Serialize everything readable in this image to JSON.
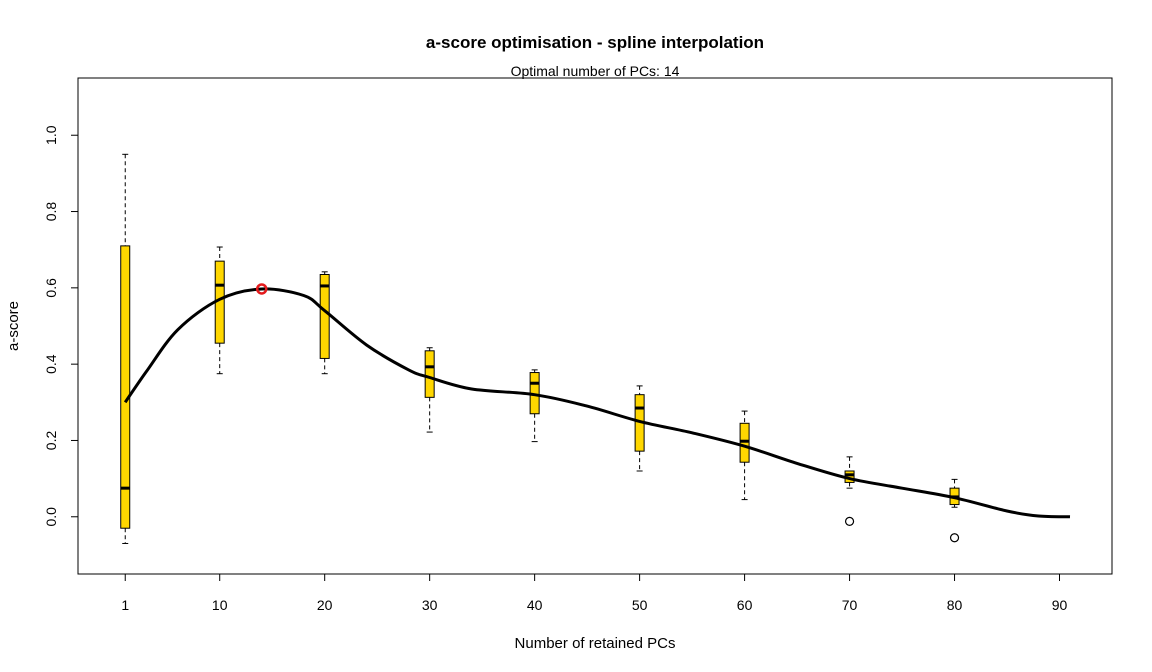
{
  "chart_data": {
    "type": "boxplot",
    "title": "a-score optimisation - spline interpolation",
    "subtitle": "Optimal number of PCs: 14",
    "xlabel": "Number of retained PCs",
    "ylabel": "a-score",
    "xlim": [
      -3.5,
      95
    ],
    "ylim": [
      -0.15,
      1.15
    ],
    "x_ticks": [
      1,
      10,
      20,
      30,
      40,
      50,
      60,
      70,
      80,
      90
    ],
    "y_ticks": [
      0.0,
      0.2,
      0.4,
      0.6,
      0.8,
      1.0
    ],
    "y_tick_labels": [
      "0.0",
      "0.2",
      "0.4",
      "0.6",
      "0.8",
      "1.0"
    ],
    "x_tick_labels": [
      "1",
      "10",
      "20",
      "30",
      "40",
      "50",
      "60",
      "70",
      "80",
      "90"
    ],
    "box_color": "#FFD700",
    "optimum_color": "#e31a1c",
    "boxes": [
      {
        "x": 1,
        "min": -0.07,
        "q1": -0.03,
        "median": 0.075,
        "q3": 0.71,
        "max": 0.95,
        "outliers": []
      },
      {
        "x": 10,
        "min": 0.375,
        "q1": 0.455,
        "median": 0.607,
        "q3": 0.67,
        "max": 0.707,
        "outliers": []
      },
      {
        "x": 20,
        "min": 0.375,
        "q1": 0.415,
        "median": 0.605,
        "q3": 0.635,
        "max": 0.642,
        "outliers": []
      },
      {
        "x": 30,
        "min": 0.222,
        "q1": 0.313,
        "median": 0.393,
        "q3": 0.435,
        "max": 0.443,
        "outliers": []
      },
      {
        "x": 40,
        "min": 0.197,
        "q1": 0.27,
        "median": 0.35,
        "q3": 0.378,
        "max": 0.385,
        "outliers": []
      },
      {
        "x": 50,
        "min": 0.12,
        "q1": 0.172,
        "median": 0.285,
        "q3": 0.32,
        "max": 0.343,
        "outliers": []
      },
      {
        "x": 60,
        "min": 0.045,
        "q1": 0.143,
        "median": 0.198,
        "q3": 0.245,
        "max": 0.277,
        "outliers": []
      },
      {
        "x": 70,
        "min": 0.075,
        "q1": 0.09,
        "median": 0.11,
        "q3": 0.12,
        "max": 0.157,
        "outliers": [
          -0.012
        ]
      },
      {
        "x": 80,
        "min": 0.025,
        "q1": 0.032,
        "median": 0.052,
        "q3": 0.075,
        "max": 0.098,
        "outliers": [
          -0.055
        ]
      }
    ],
    "spline": {
      "x": [
        1,
        3,
        6,
        10,
        14,
        18,
        20,
        24,
        28,
        30,
        34,
        40,
        45,
        50,
        55,
        60,
        65,
        70,
        75,
        80,
        85,
        88,
        91
      ],
      "y": [
        0.3,
        0.38,
        0.49,
        0.57,
        0.597,
        0.58,
        0.54,
        0.45,
        0.385,
        0.365,
        0.335,
        0.32,
        0.29,
        0.25,
        0.22,
        0.185,
        0.14,
        0.1,
        0.075,
        0.05,
        0.015,
        0.002,
        0.0
      ]
    },
    "optimum": {
      "x": 14,
      "y": 0.597
    }
  }
}
